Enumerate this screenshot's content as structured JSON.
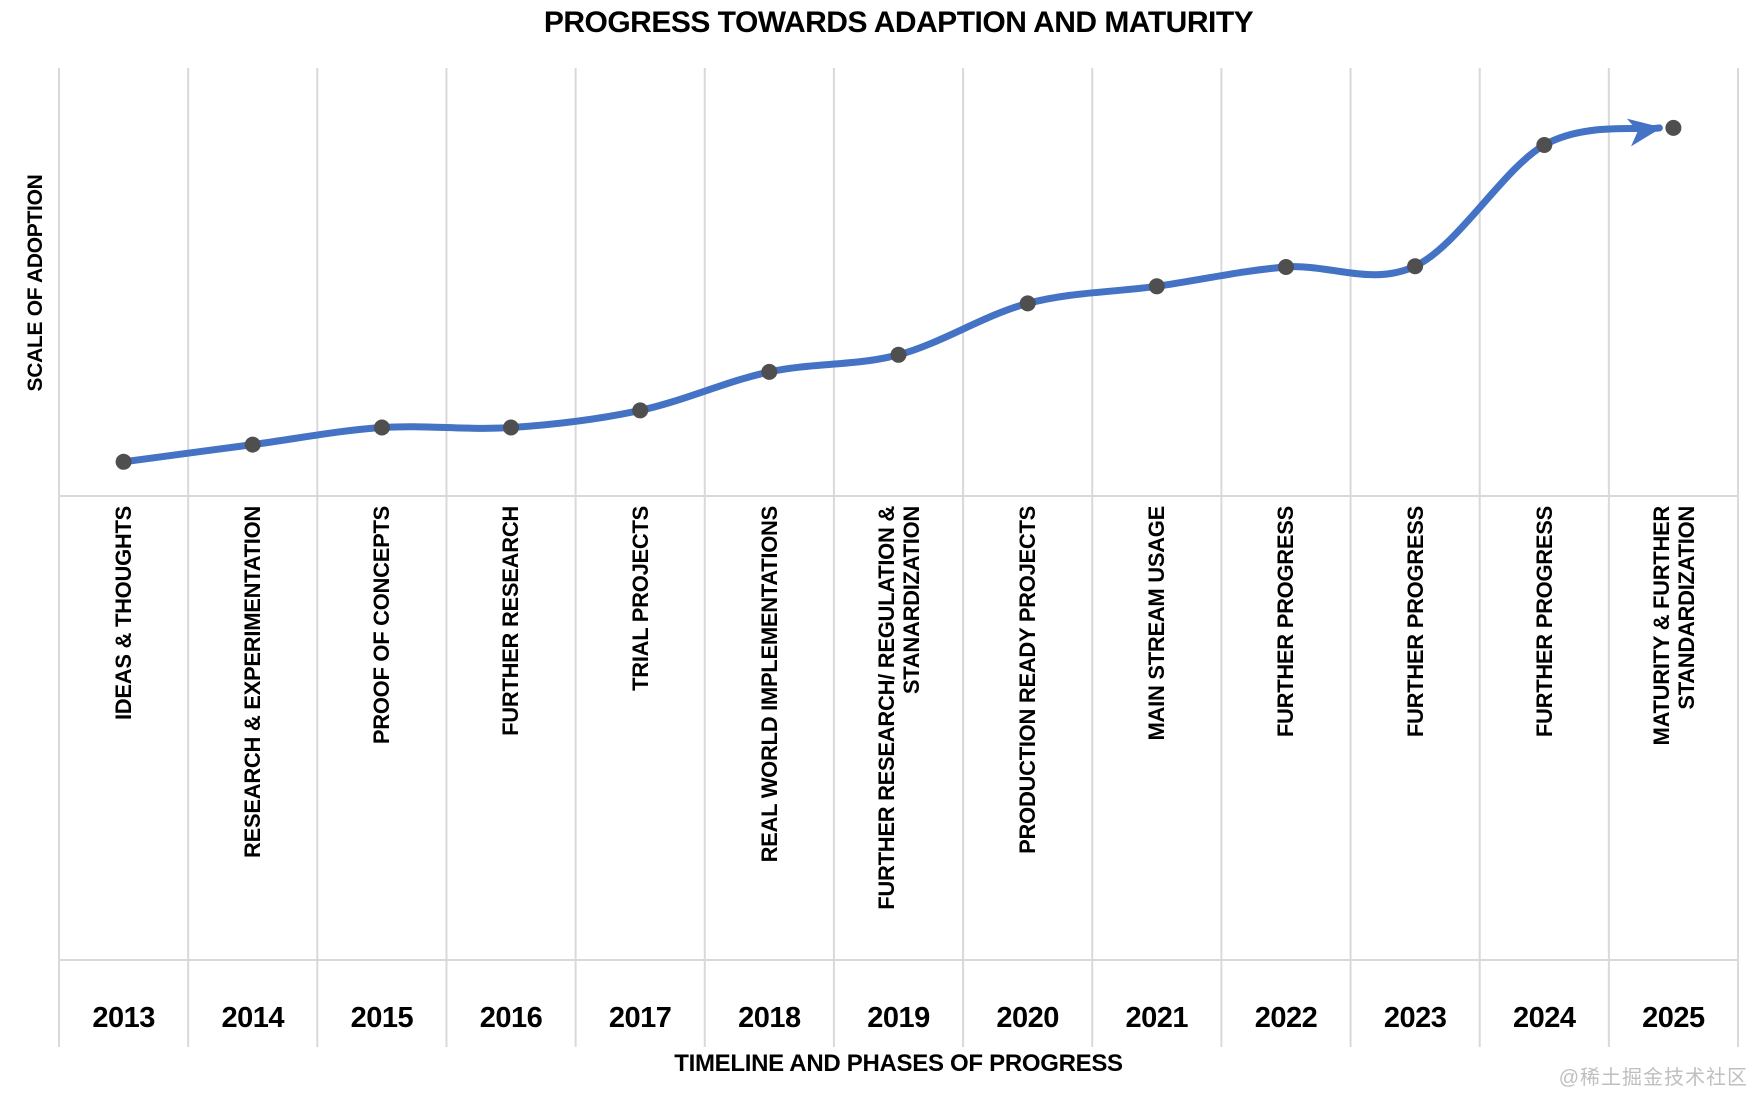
{
  "chart_data": {
    "type": "line",
    "title": "PROGRESS TOWARDS ADAPTION AND MATURITY",
    "xlabel": "TIMELINE AND PHASES OF PROGRESS",
    "ylabel": "SCALE OF ADOPTION",
    "x": [
      "2013",
      "2014",
      "2015",
      "2016",
      "2017",
      "2018",
      "2019",
      "2020",
      "2021",
      "2022",
      "2023",
      "2024",
      "2025"
    ],
    "phases": [
      "IDEAS & THOUGHTS",
      "RESEARCH & EXPERIMENTATION",
      "PROOF OF CONCEPTS",
      "FURTHER RESEARCH",
      "TRIAL PROJECTS",
      "REAL WORLD IMPLEMENTATIONS",
      "FURTHER RESEARCH/ REGULATION &\nSTANARDIZATION",
      "PRODUCTION READY PROJECTS",
      "MAIN STREAM USAGE",
      "FURTHER PROGRESS",
      "FURTHER PROGRESS",
      "FURTHER PROGRESS",
      "MATURITY & FURTHER STANDARDIZATION"
    ],
    "series": [
      {
        "name": "Scale of adoption",
        "values": [
          8,
          12,
          16,
          16,
          20,
          29,
          33,
          45,
          49,
          53.5,
          53.7,
          82,
          86
        ]
      }
    ],
    "ylim": [
      0,
      100
    ],
    "grid": "vertical",
    "legend": "none",
    "arrow_at_end": true,
    "line_color": "#4472C4",
    "marker_color": "#4F4F4F",
    "gridline_color": "#D9D9D9",
    "watermark_color": "#BFBFBF"
  },
  "watermark": "@稀土掘金技术社区"
}
